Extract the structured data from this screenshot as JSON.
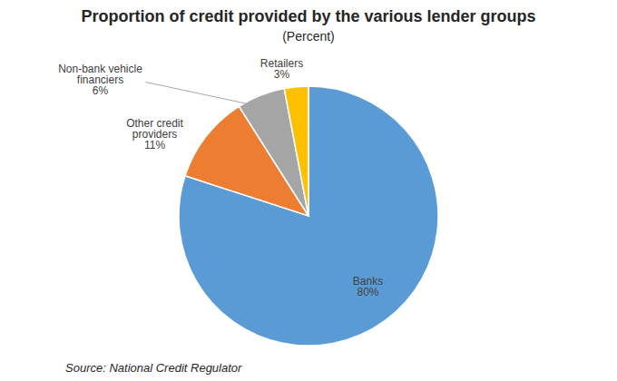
{
  "chart_data": {
    "type": "pie",
    "title": "Proportion of credit provided by the various lender groups",
    "subtitle": "(Percent)",
    "source": "Source: National Credit Regulator",
    "categories": [
      "Banks",
      "Other credit providers",
      "Non-bank vehicle financiers",
      "Retailers"
    ],
    "values": [
      80,
      11,
      6,
      3
    ],
    "value_labels": [
      "80%",
      "11%",
      "6%",
      "3%"
    ],
    "colors": [
      "#5b9bd5",
      "#ed7d31",
      "#a5a5a5",
      "#ffc000"
    ],
    "data_labels": true
  }
}
